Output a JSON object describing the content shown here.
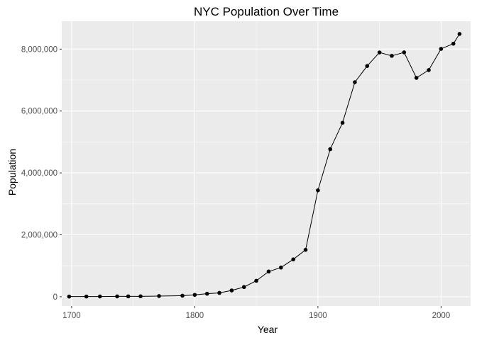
{
  "chart_data": {
    "type": "line",
    "title": "NYC Population Over Time",
    "xlabel": "Year",
    "ylabel": "Population",
    "xlim": [
      1692,
      2024
    ],
    "ylim": [
      -300000,
      8900000
    ],
    "x_ticks": [
      1700,
      1800,
      1900,
      2000
    ],
    "x_tick_labels": [
      "1700",
      "1800",
      "1900",
      "2000"
    ],
    "y_ticks": [
      0,
      2000000,
      4000000,
      6000000,
      8000000
    ],
    "y_tick_labels": [
      "0",
      "2,000,000",
      "4,000,000",
      "6,000,000",
      "8,000,000"
    ],
    "grid": true,
    "markers": true,
    "colors": {
      "panel": "#ebebeb",
      "grid_major": "#ffffff",
      "line": "#000000",
      "point": "#000000"
    },
    "series": [
      {
        "x": [
          1698,
          1712,
          1723,
          1737,
          1746,
          1756,
          1771,
          1790,
          1800,
          1810,
          1820,
          1830,
          1840,
          1850,
          1860,
          1870,
          1880,
          1890,
          1900,
          1910,
          1920,
          1930,
          1940,
          1950,
          1960,
          1970,
          1980,
          1990,
          2000,
          2010,
          2015
        ],
        "y": [
          4937,
          5840,
          7248,
          10664,
          11717,
          13046,
          21863,
          33131,
          60515,
          96373,
          123706,
          202589,
          312710,
          515547,
          813669,
          942292,
          1206299,
          1515301,
          3437202,
          4766883,
          5620048,
          6930446,
          7454995,
          7891957,
          7781984,
          7894862,
          7071639,
          7322564,
          8008278,
          8175133,
          8491079
        ]
      }
    ]
  }
}
